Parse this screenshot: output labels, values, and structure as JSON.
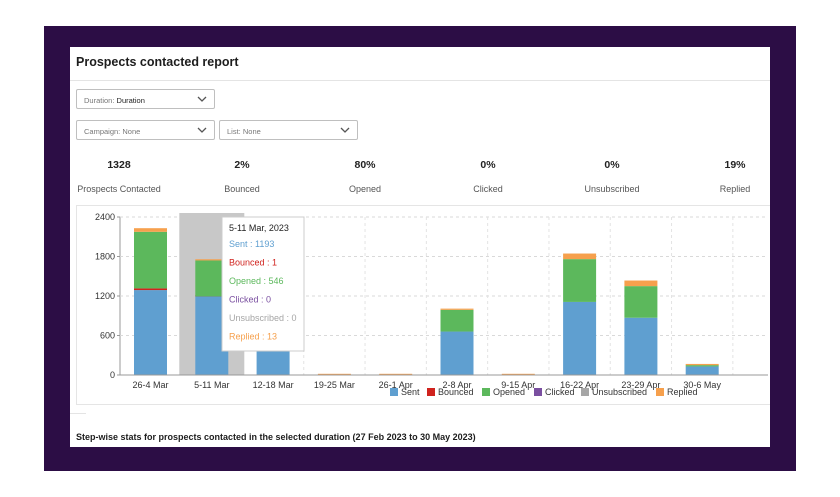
{
  "report": {
    "title": "Prospects contacted report",
    "footer": "Step-wise stats for prospects contacted in the selected duration (27 Feb 2023 to 30 May 2023)"
  },
  "filters": {
    "duration": {
      "label": "Duration:",
      "value": "Duration"
    },
    "campaign": {
      "label": "Campaign:",
      "value": "None"
    },
    "list": {
      "label": "List:",
      "value": "None"
    }
  },
  "stats": [
    {
      "value": "1328",
      "label": "Prospects Contacted"
    },
    {
      "value": "2%",
      "label": "Bounced"
    },
    {
      "value": "80%",
      "label": "Opened"
    },
    {
      "value": "0%",
      "label": "Clicked"
    },
    {
      "value": "0%",
      "label": "Unsubscribed"
    },
    {
      "value": "19%",
      "label": "Replied"
    }
  ],
  "tooltip": {
    "title": "5-11 Mar, 2023",
    "lines": [
      "Sent : 1193",
      "Bounced : 1",
      "Opened : 546",
      "Clicked : 0",
      "Unsubscribed : 0",
      "Replied : 13"
    ]
  },
  "colors": {
    "sent": "#5f9fd0",
    "bounced": "#d0231e",
    "opened": "#5cb85c",
    "clicked": "#7a4fa0",
    "unsubscribed": "#a6a6a6",
    "replied": "#f6a04d",
    "frame": "#2c0d45",
    "highlight": "#c8c8c8"
  },
  "chart_data": {
    "type": "bar",
    "stacked": true,
    "categories": [
      "26-4 Mar",
      "5-11 Mar",
      "12-18 Mar",
      "19-25 Mar",
      "26-1 Apr",
      "2-8 Apr",
      "9-15 Apr",
      "16-22 Apr",
      "23-29 Apr",
      "30-6 May"
    ],
    "series": [
      {
        "name": "Sent",
        "values": [
          1290,
          1193,
          580,
          0,
          0,
          660,
          0,
          1110,
          870,
          130
        ]
      },
      {
        "name": "Bounced",
        "values": [
          25,
          1,
          0,
          0,
          0,
          0,
          0,
          0,
          0,
          0
        ]
      },
      {
        "name": "Opened",
        "values": [
          860,
          546,
          0,
          0,
          0,
          330,
          0,
          650,
          480,
          20
        ]
      },
      {
        "name": "Clicked",
        "values": [
          0,
          0,
          0,
          0,
          0,
          0,
          0,
          0,
          0,
          0
        ]
      },
      {
        "name": "Unsubscribed",
        "values": [
          0,
          0,
          0,
          0,
          0,
          0,
          0,
          0,
          0,
          0
        ]
      },
      {
        "name": "Replied",
        "values": [
          55,
          13,
          0,
          10,
          10,
          15,
          10,
          85,
          85,
          15
        ]
      }
    ],
    "yticks": [
      0,
      600,
      1200,
      1800,
      2400
    ],
    "ylim": [
      0,
      2400
    ],
    "highlighted_category": "5-11 Mar",
    "grid": true,
    "legend_position": "bottom"
  }
}
